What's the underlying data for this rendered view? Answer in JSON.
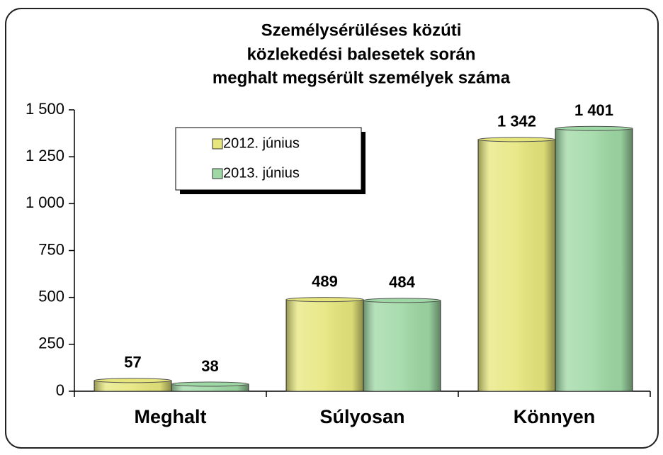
{
  "chart_data": {
    "type": "bar",
    "title": [
      "Személysérüléses  közúti",
      "közlekedési balesetek során",
      "meghalt megsérült személyek száma"
    ],
    "categories": [
      "Meghalt",
      "Súlyosan",
      "Könnyen"
    ],
    "series": [
      {
        "name": "2012. június",
        "color": "#e6e67c",
        "values": [
          57,
          489,
          1342
        ],
        "value_labels": [
          "57",
          "489",
          "1 342"
        ]
      },
      {
        "name": "2013. június",
        "color": "#9ed8a4",
        "values": [
          38,
          484,
          1401
        ],
        "value_labels": [
          "38",
          "484",
          "1 401"
        ]
      }
    ],
    "ylim": [
      0,
      1500
    ],
    "yticks": [
      0,
      250,
      500,
      750,
      {
        "value": 1000,
        "label": "1 000"
      },
      {
        "value": 1250,
        "label": "1 250"
      },
      {
        "value": 1500,
        "label": "1 500"
      }
    ],
    "legend": "upper left"
  }
}
